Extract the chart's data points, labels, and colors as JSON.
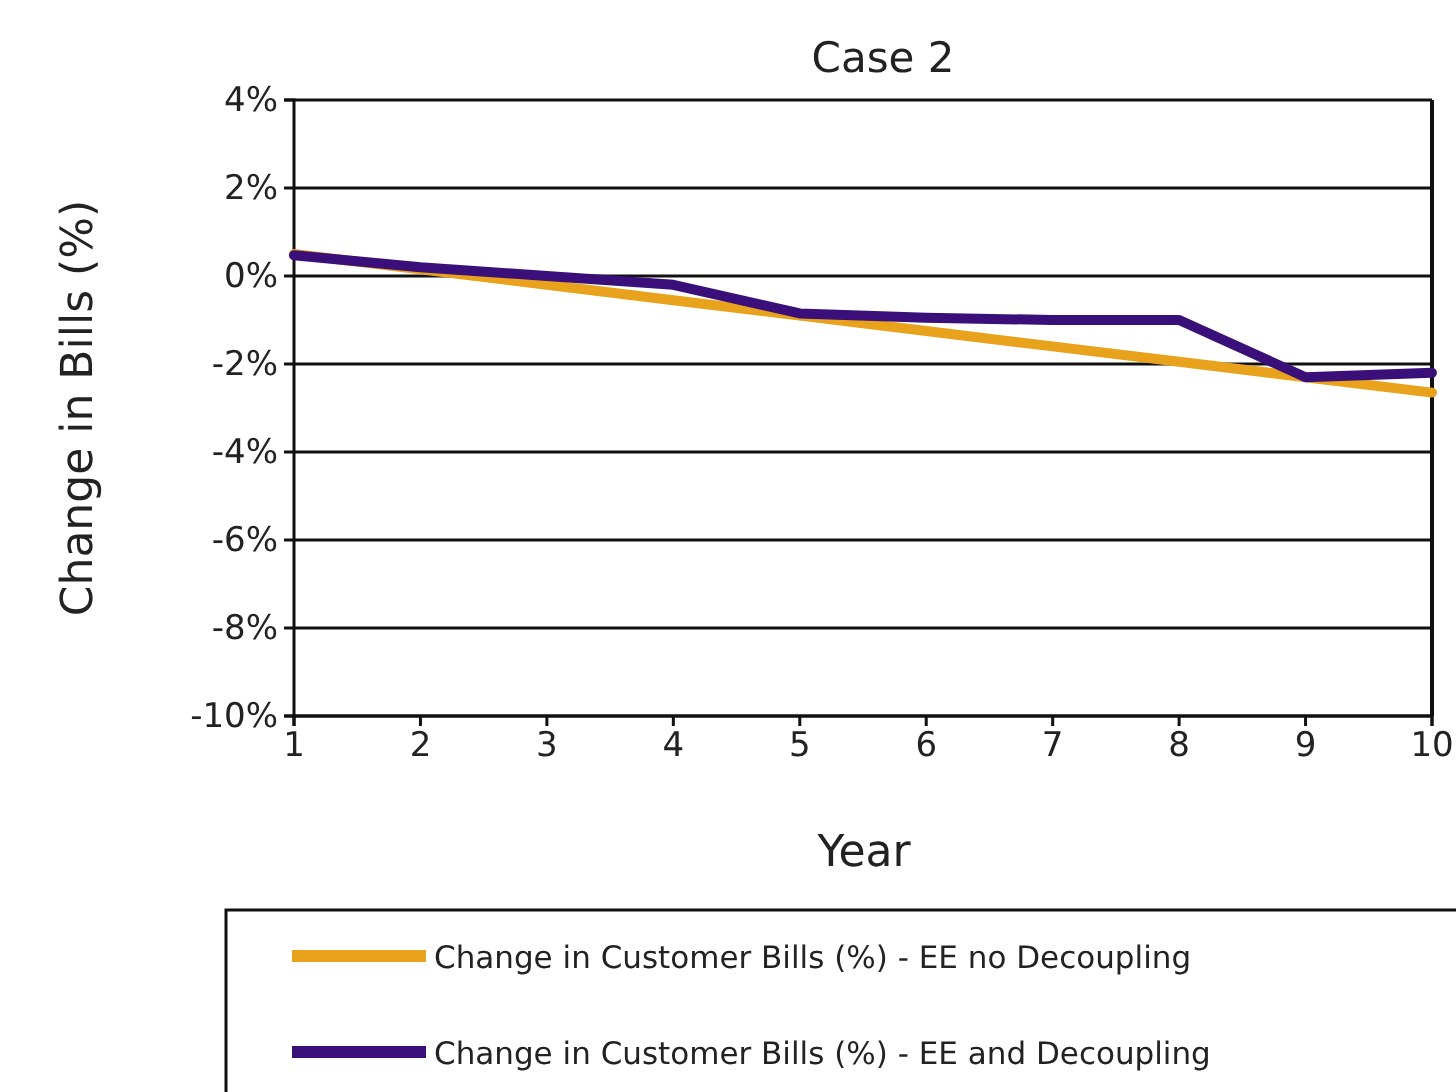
{
  "chart_data": {
    "type": "line",
    "title": "Case 2",
    "xlabel": "Year",
    "ylabel": "Change in Bills (%)",
    "x": [
      1,
      2,
      3,
      4,
      5,
      6,
      7,
      8,
      9,
      10
    ],
    "series": [
      {
        "name": "Change in Customer Bills (%) - EE no Decoupling",
        "color": "#e8a21c",
        "values": [
          0.5,
          0.15,
          -0.2,
          -0.55,
          -0.9,
          -1.25,
          -1.6,
          -1.95,
          -2.3,
          -2.65
        ]
      },
      {
        "name": "Change in Customer Bills (%) - EE and Decoupling",
        "color": "#3a0f7a",
        "values": [
          0.47,
          0.2,
          0.0,
          -0.2,
          -0.85,
          -0.95,
          -1.0,
          -1.0,
          -2.3,
          -2.2
        ]
      }
    ],
    "xlim": [
      1,
      10
    ],
    "xticks": [
      1,
      2,
      3,
      4,
      5,
      6,
      7,
      8,
      9,
      10
    ],
    "ylim": [
      -10,
      4
    ],
    "yticks": [
      {
        "value": -10,
        "label": "-10%"
      },
      {
        "value": -8,
        "label": "-8%"
      },
      {
        "value": -6,
        "label": "-6%"
      },
      {
        "value": -4,
        "label": "-4%"
      },
      {
        "value": -2,
        "label": "-2%"
      },
      {
        "value": 0,
        "label": "0%"
      },
      {
        "value": 2,
        "label": "2%"
      },
      {
        "value": 4,
        "label": "4%"
      }
    ],
    "grid": "y",
    "legend": "bottom",
    "marker": "none",
    "line_style": "solid"
  }
}
